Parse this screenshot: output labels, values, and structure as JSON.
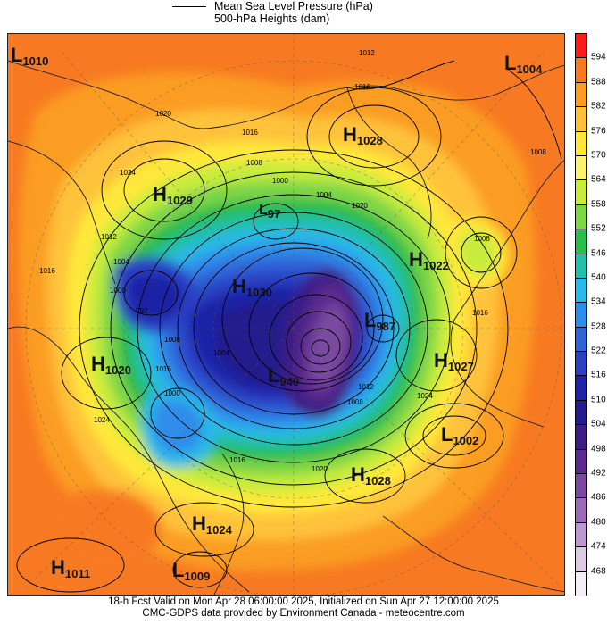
{
  "header": {
    "line1": "Mean Sea Level Pressure (hPa)",
    "line2": "500-hPa Heights (dam)"
  },
  "colorbar": {
    "ticks": [
      "594",
      "588",
      "582",
      "576",
      "570",
      "564",
      "558",
      "552",
      "546",
      "540",
      "534",
      "528",
      "522",
      "516",
      "510",
      "504",
      "498",
      "492",
      "486",
      "480",
      "474",
      "468"
    ],
    "colors": [
      "#ff1a1a",
      "#f77a22",
      "#fb9d22",
      "#ffc23a",
      "#ffe83a",
      "#fff270",
      "#c7ec3c",
      "#7ed546",
      "#2cbc4e",
      "#24c0aa",
      "#29b8e8",
      "#2d8dea",
      "#2f63d8",
      "#2a3fc4",
      "#1f21a6",
      "#241a8c",
      "#3d1d84",
      "#5c2a8f",
      "#7a48a0",
      "#9b6cb5",
      "#bb98cd",
      "#dccae5",
      "#f4eef8"
    ]
  },
  "systems": [
    {
      "type": "L",
      "value": "1010"
    },
    {
      "type": "L",
      "value": "1004"
    },
    {
      "type": "H",
      "value": "1028"
    },
    {
      "type": "H",
      "value": "1029"
    },
    {
      "type": "L",
      "value": "97"
    },
    {
      "type": "H",
      "value": "1022"
    },
    {
      "type": "H",
      "value": "1030"
    },
    {
      "type": "L",
      "value": "987"
    },
    {
      "type": "H",
      "value": "1020"
    },
    {
      "type": "H",
      "value": "1027"
    },
    {
      "type": "L",
      "value": "940"
    },
    {
      "type": "L",
      "value": "1002"
    },
    {
      "type": "H",
      "value": "1028"
    },
    {
      "type": "H",
      "value": "1024"
    },
    {
      "type": "H",
      "value": "1011"
    },
    {
      "type": "L",
      "value": "1009"
    }
  ],
  "isobar_labels": [
    "1012",
    "1016",
    "1020",
    "1016",
    "1008",
    "1000",
    "1024",
    "1004",
    "1012",
    "1016",
    "1000",
    "1004",
    "1008",
    "992",
    "1016",
    "1020",
    "1024",
    "1008",
    "1012",
    "1008",
    "1016",
    "1020",
    "1016",
    "1004",
    "1000",
    "1024",
    "1008"
  ],
  "footer": {
    "line1": "18-h Fcst Valid on Mon Apr 28 06:00:00 2025, Initialized on Sun Apr 27 12:00:00 2025",
    "line2": "CMC-GDPS data provided by Environment Canada - meteocentre.com"
  }
}
